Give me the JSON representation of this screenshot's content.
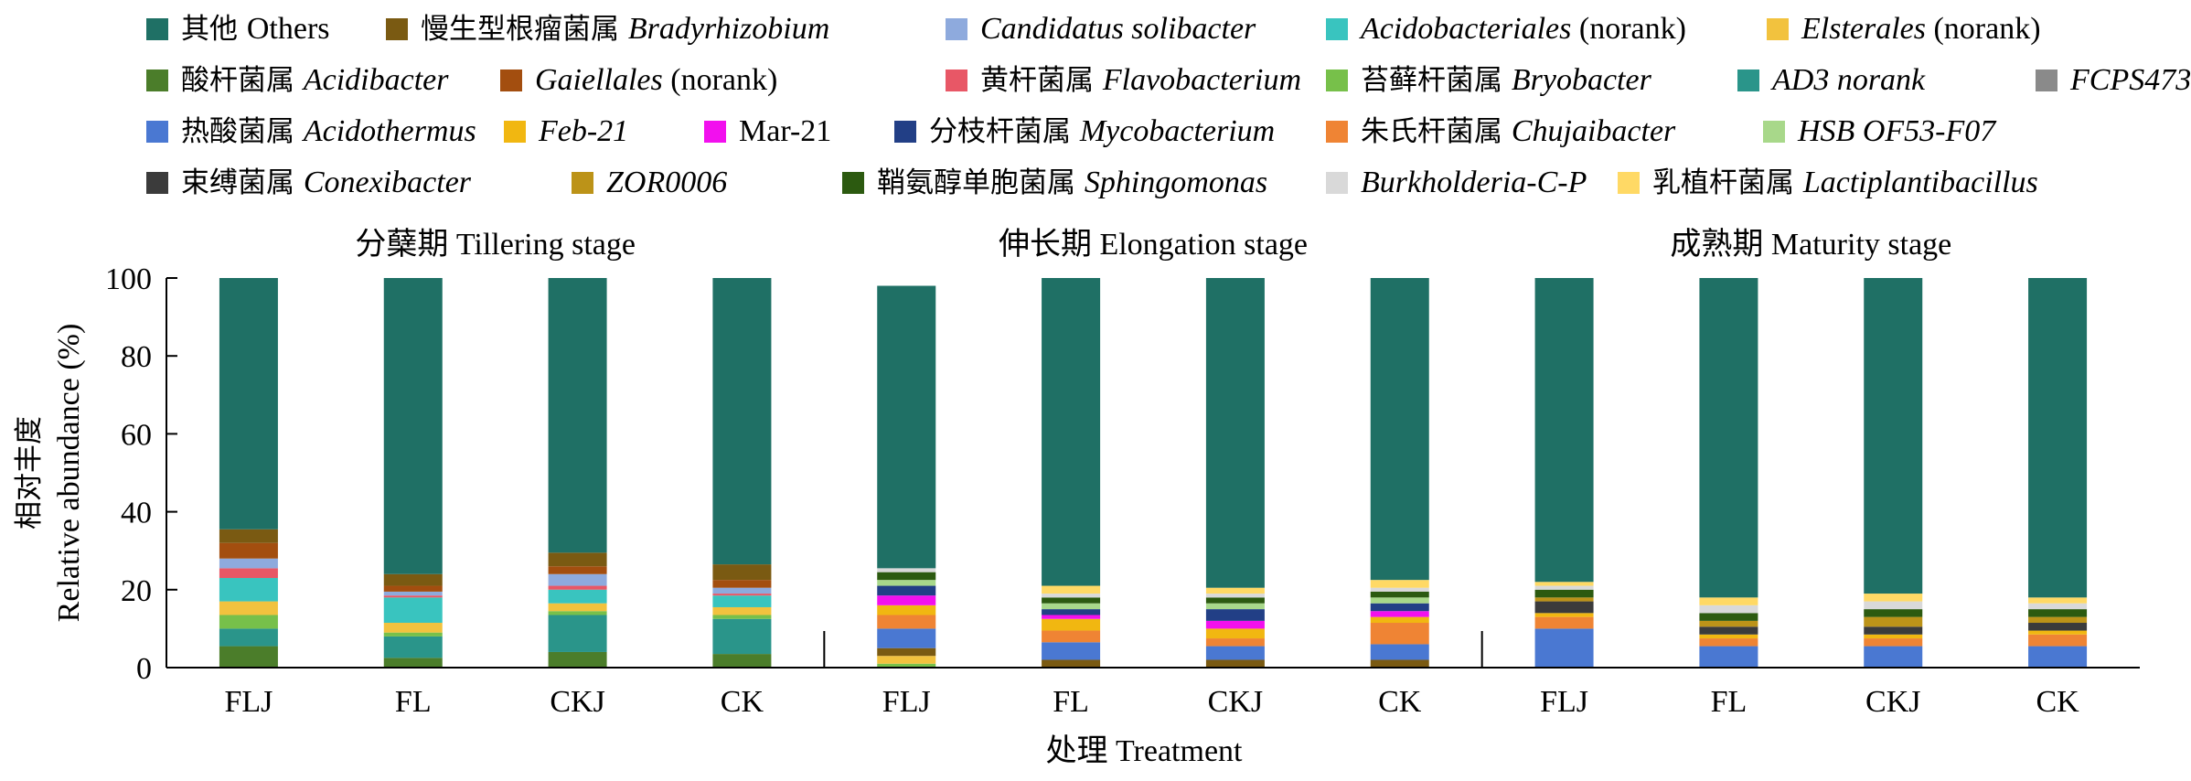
{
  "legend": {
    "rows": [
      [
        {
          "cn": "其他",
          "latin": "Others",
          "italic": false,
          "suffix": "",
          "color": "#1f7065"
        },
        {
          "cn": "慢生型根瘤菌属",
          "latin": "Bradyrhizobium",
          "italic": true,
          "suffix": "",
          "color": "#7a5a12"
        },
        {
          "cn": "",
          "latin": "Candidatus solibacter",
          "italic": true,
          "suffix": "",
          "color": "#8eaadd"
        },
        {
          "cn": "",
          "latin": "Acidobacteriales",
          "italic": true,
          "suffix": " (norank)",
          "color": "#39c4bf"
        },
        {
          "cn": "",
          "latin": "Elsterales",
          "italic": true,
          "suffix": " (norank)",
          "color": "#f2c23e"
        }
      ],
      [
        {
          "cn": "酸杆菌属",
          "latin": "Acidibacter",
          "italic": true,
          "suffix": "",
          "color": "#4b7d2a"
        },
        {
          "cn": "",
          "latin": "Gaiellales",
          "italic": true,
          "suffix": " (norank)",
          "color": "#a34e0f"
        },
        {
          "cn": "黄杆菌属",
          "latin": "Flavobacterium",
          "italic": true,
          "suffix": "",
          "color": "#e85766"
        },
        {
          "cn": "苔藓杆菌属",
          "latin": "Bryobacter",
          "italic": true,
          "suffix": "",
          "color": "#77c04a"
        },
        {
          "cn": "",
          "latin": "AD3 norank",
          "italic": true,
          "suffix": "",
          "color": "#2a958a"
        },
        {
          "cn": "",
          "latin": "FCPS473",
          "italic": true,
          "suffix": "",
          "color": "#8a8a8a"
        }
      ],
      [
        {
          "cn": "热酸菌属",
          "latin": "Acidothermus",
          "italic": true,
          "suffix": "",
          "color": "#4a78d2"
        },
        {
          "cn": "",
          "latin": "Feb-21",
          "italic": true,
          "suffix": "",
          "color": "#f1b711"
        },
        {
          "cn": "",
          "latin": "Mar-21",
          "italic": false,
          "suffix": "",
          "color": "#f210ee"
        },
        {
          "cn": "分枝杆菌属",
          "latin": "Mycobacterium",
          "italic": true,
          "suffix": "",
          "color": "#223f86"
        },
        {
          "cn": "朱氏杆菌属",
          "latin": "Chujaibacter",
          "italic": true,
          "suffix": "",
          "color": "#ef8434"
        },
        {
          "cn": "",
          "latin": "HSB OF53-F07",
          "italic": true,
          "suffix": "",
          "color": "#a8d88a"
        }
      ],
      [
        {
          "cn": "束缚菌属",
          "latin": "Conexibacter",
          "italic": true,
          "suffix": "",
          "color": "#3b3b3b"
        },
        {
          "cn": "",
          "latin": "ZOR0006",
          "italic": true,
          "suffix": "",
          "color": "#bc9318"
        },
        {
          "cn": "鞘氨醇单胞菌属",
          "latin": "Sphingomonas",
          "italic": true,
          "suffix": "",
          "color": "#2c5a10"
        },
        {
          "cn": "",
          "latin": "Burkholderia-C-P",
          "italic": true,
          "suffix": "",
          "color": "#d9d9d9"
        },
        {
          "cn": "乳植杆菌属",
          "latin": "Lactiplantibacillus",
          "italic": true,
          "suffix": "",
          "color": "#ffd965"
        }
      ]
    ]
  },
  "chart_data": {
    "type": "bar",
    "stacked": true,
    "title": "",
    "xlabel": "处理 Treatment",
    "ylabel_cn": "相对丰度",
    "ylabel": "Relative abundance (%)",
    "ylim": [
      0,
      100
    ],
    "yticks": [
      0,
      20,
      40,
      60,
      80,
      100
    ],
    "groups": [
      "分蘖期 Tillering stage",
      "伸长期 Elongation stage",
      "成熟期 Maturity stage"
    ],
    "categories": [
      "FLJ",
      "FL",
      "CKJ",
      "CK"
    ],
    "series_order_bottom_to_top": [
      "Acidibacter",
      "AD3 norank",
      "Bryobacter",
      "Elsterales",
      "Acidobacteriales",
      "Flavobacterium",
      "Candidatus solibacter",
      "Gaiellales",
      "Bradyrhizobium",
      "Acidothermus",
      "Chujaibacter",
      "Feb-21",
      "Mar-21",
      "Mycobacterium",
      "HSB OF53-F07",
      "Conexibacter",
      "ZOR0006",
      "Sphingomonas",
      "Burkholderia-C-P",
      "Lactiplantibacillus",
      "FCPS473",
      "Others"
    ],
    "colors": {
      "Others": "#1f7065",
      "Bradyrhizobium": "#7a5a12",
      "Candidatus solibacter": "#8eaadd",
      "Acidobacteriales": "#39c4bf",
      "Elsterales": "#f2c23e",
      "Acidibacter": "#4b7d2a",
      "Gaiellales": "#a34e0f",
      "Flavobacterium": "#e85766",
      "Bryobacter": "#77c04a",
      "AD3 norank": "#2a958a",
      "FCPS473": "#8a8a8a",
      "Acidothermus": "#4a78d2",
      "Feb-21": "#f1b711",
      "Mar-21": "#f210ee",
      "Mycobacterium": "#223f86",
      "Chujaibacter": "#ef8434",
      "HSB OF53-F07": "#a8d88a",
      "Conexibacter": "#3b3b3b",
      "ZOR0006": "#bc9318",
      "Sphingomonas": "#2c5a10",
      "Burkholderia-C-P": "#d9d9d9",
      "Lactiplantibacillus": "#ffd965"
    },
    "bars": [
      {
        "group": 0,
        "category": "FLJ",
        "values": {
          "Acidibacter": 5.5,
          "AD3 norank": 4.5,
          "Bryobacter": 3.5,
          "Elsterales": 3.5,
          "Acidobacteriales": 6,
          "Flavobacterium": 2.5,
          "Candidatus solibacter": 2.5,
          "Gaiellales": 4,
          "Bradyrhizobium": 3.5,
          "Others": 64.5
        }
      },
      {
        "group": 0,
        "category": "FL",
        "values": {
          "Acidibacter": 2.5,
          "AD3 norank": 5.5,
          "Bryobacter": 1,
          "Elsterales": 2.5,
          "Acidobacteriales": 6.5,
          "Flavobacterium": 0.5,
          "Candidatus solibacter": 1,
          "Gaiellales": 1.5,
          "Bradyrhizobium": 3,
          "Others": 76
        }
      },
      {
        "group": 0,
        "category": "CKJ",
        "values": {
          "Acidibacter": 4,
          "AD3 norank": 9.5,
          "Bryobacter": 1,
          "Elsterales": 2,
          "Acidobacteriales": 3.5,
          "Flavobacterium": 1,
          "Candidatus solibacter": 3,
          "Gaiellales": 2,
          "Bradyrhizobium": 3.5,
          "Others": 70.5
        }
      },
      {
        "group": 0,
        "category": "CK",
        "values": {
          "Acidibacter": 3.5,
          "AD3 norank": 9,
          "Bryobacter": 1,
          "Elsterales": 2,
          "Acidobacteriales": 3,
          "Flavobacterium": 0.5,
          "Candidatus solibacter": 1.5,
          "Gaiellales": 2,
          "Bradyrhizobium": 4,
          "Others": 73.5
        }
      },
      {
        "group": 1,
        "category": "FLJ",
        "values": {
          "Acidothermus": 5,
          "Chujaibacter": 3.5,
          "Feb-21": 2.5,
          "Elsterales": 2,
          "Mar-21": 2.5,
          "Mycobacterium": 2.5,
          "Sphingomonas": 2,
          "Bradyrhizobium": 2,
          "HSB OF53-F07": 1.5,
          "Bryobacter": 1,
          "Burkholderia-C-P": 1,
          "Others": 72.5
        }
      },
      {
        "group": 1,
        "category": "FL",
        "values": {
          "Acidothermus": 4.5,
          "Chujaibacter": 3,
          "Feb-21": 3,
          "Lactiplantibacillus": 2,
          "Mar-21": 1,
          "Mycobacterium": 1.5,
          "Bradyrhizobium": 2,
          "Sphingomonas": 1.5,
          "HSB OF53-F07": 1.5,
          "Burkholderia-C-P": 1,
          "Others": 79
        }
      },
      {
        "group": 1,
        "category": "CKJ",
        "values": {
          "Acidothermus": 3.5,
          "Chujaibacter": 2,
          "Feb-21": 2.5,
          "Lactiplantibacillus": 1.5,
          "Mar-21": 2,
          "Mycobacterium": 3,
          "Bradyrhizobium": 2,
          "Sphingomonas": 1.5,
          "HSB OF53-F07": 1.5,
          "Burkholderia-C-P": 1,
          "Others": 79.5
        }
      },
      {
        "group": 1,
        "category": "CK",
        "values": {
          "Acidothermus": 4,
          "Chujaibacter": 5.5,
          "Feb-21": 1.5,
          "Lactiplantibacillus": 2,
          "Mar-21": 1.5,
          "Mycobacterium": 2,
          "Bradyrhizobium": 2,
          "Sphingomonas": 1.5,
          "HSB OF53-F07": 1.5,
          "Burkholderia-C-P": 1,
          "Others": 77.5
        }
      },
      {
        "group": 2,
        "category": "FLJ",
        "values": {
          "Acidothermus": 10,
          "Chujaibacter": 3,
          "Feb-21": 1,
          "Sphingomonas": 2,
          "ZOR0006": 1,
          "Conexibacter": 3,
          "Burkholderia-C-P": 1,
          "Lactiplantibacillus": 1,
          "Others": 78
        }
      },
      {
        "group": 2,
        "category": "FL",
        "values": {
          "Acidothermus": 5.5,
          "Chujaibacter": 2,
          "Feb-21": 1,
          "Sphingomonas": 2,
          "Conexibacter": 2,
          "ZOR0006": 1.5,
          "Burkholderia-C-P": 2,
          "Lactiplantibacillus": 2,
          "Others": 82
        }
      },
      {
        "group": 2,
        "category": "CKJ",
        "values": {
          "Acidothermus": 5.5,
          "Chujaibacter": 2,
          "Feb-21": 1,
          "Sphingomonas": 2,
          "Conexibacter": 2,
          "ZOR0006": 2.5,
          "Burkholderia-C-P": 2,
          "Lactiplantibacillus": 2,
          "Others": 81
        }
      },
      {
        "group": 2,
        "category": "CK",
        "values": {
          "Acidothermus": 5.5,
          "Chujaibacter": 3,
          "Feb-21": 1,
          "Sphingomonas": 2,
          "Conexibacter": 2,
          "ZOR0006": 1.5,
          "Burkholderia-C-P": 1.5,
          "Lactiplantibacillus": 1.5,
          "Others": 82
        }
      }
    ]
  }
}
